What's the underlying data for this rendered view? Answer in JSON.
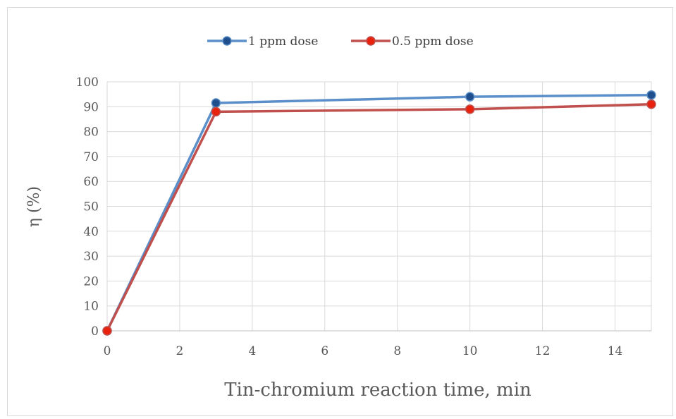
{
  "chart_data": {
    "type": "line",
    "title": "",
    "xlabel": "Tin-chromium reaction time, min",
    "ylabel": "η (%)",
    "xlim": [
      0,
      15
    ],
    "ylim": [
      0,
      100
    ],
    "x_ticks": [
      0,
      2,
      4,
      6,
      8,
      10,
      12,
      14
    ],
    "y_ticks": [
      0,
      10,
      20,
      30,
      40,
      50,
      60,
      70,
      80,
      90,
      100
    ],
    "grid": true,
    "legend_position": "top",
    "series": [
      {
        "name": "1 ppm dose",
        "color": "#5b8fc9",
        "marker_color": "#1f4e8c",
        "x": [
          0,
          3,
          10,
          15
        ],
        "y": [
          0,
          91.5,
          94,
          94.7
        ]
      },
      {
        "name": "0.5 ppm dose",
        "color": "#c0504d",
        "marker_color": "#e8220c",
        "x": [
          0,
          3,
          10,
          15
        ],
        "y": [
          0,
          88,
          89,
          91
        ]
      }
    ]
  }
}
